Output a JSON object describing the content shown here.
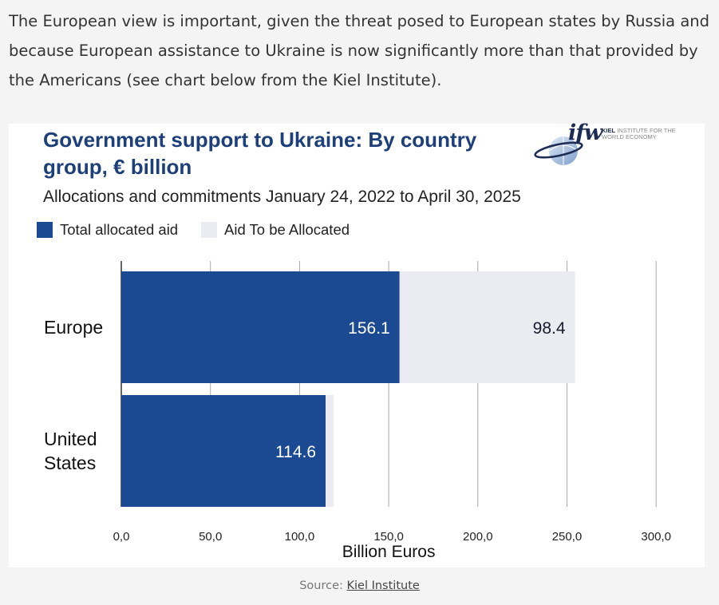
{
  "intro": "The European view is important, given the threat posed to European states by Russia and because European assistance to Ukraine is now significantly more than that provided by the Americans (see chart below from the Kiel Institute).",
  "logo": {
    "mark": "ifw",
    "name_bold": "KIEL",
    "name_rest": "INSTITUTE FOR THE WORLD ECONOMY"
  },
  "source": {
    "prefix": "Source: ",
    "link": "Kiel Institute"
  },
  "colors": {
    "allocated": "#1b4a93",
    "to_be_allocated": "#eaecf1",
    "title": "#1d3f7a"
  },
  "chart_data": {
    "type": "bar",
    "orientation": "horizontal",
    "stacked": true,
    "title": "Government support to Ukraine: By country group, € billion",
    "subtitle": "Allocations and commitments January 24, 2022 to April 30, 2025",
    "xlabel": "Billion Euros",
    "ylabel": "",
    "xlim": [
      0,
      300
    ],
    "xticks": [
      0,
      50,
      100,
      150,
      200,
      250,
      300
    ],
    "xtick_labels": [
      "0,0",
      "50,0",
      "100,0",
      "150,0",
      "200,0",
      "250,0",
      "300,0"
    ],
    "grid": "vertical",
    "legend_position": "top-left",
    "categories": [
      "Europe",
      "United States"
    ],
    "category_labels": [
      [
        "Europe"
      ],
      [
        "United",
        "States"
      ]
    ],
    "series": [
      {
        "name": "Total allocated aid",
        "values": [
          156.1,
          114.6
        ],
        "labels": [
          "156.1",
          "114.6"
        ]
      },
      {
        "name": "Aid To be Allocated",
        "values": [
          98.4,
          4.5
        ],
        "labels": [
          "98.4",
          ""
        ]
      }
    ]
  }
}
